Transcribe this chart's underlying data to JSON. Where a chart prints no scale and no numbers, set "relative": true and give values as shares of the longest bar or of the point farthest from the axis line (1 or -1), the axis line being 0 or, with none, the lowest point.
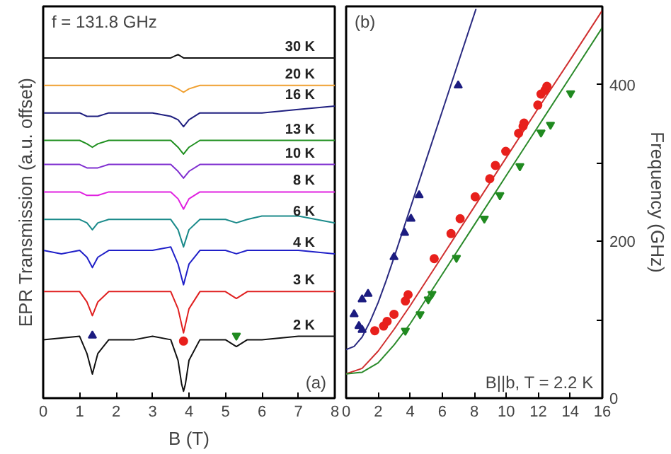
{
  "chart_data": [
    {
      "type": "line",
      "relative": true,
      "xlabel": "B (T)",
      "ylabel": "EPR Transmission (a.u. offset)",
      "xlim": [
        0,
        8
      ],
      "xticks": [
        0,
        1,
        2,
        3,
        4,
        5,
        6,
        7,
        8
      ],
      "tick_labels": "x",
      "grid": false,
      "annotations": [
        "f = 131.8 GHz",
        "(a)"
      ],
      "x": [
        0,
        0.5,
        1,
        1.2,
        1.35,
        1.5,
        1.8,
        2.5,
        3,
        3.5,
        3.7,
        3.85,
        4,
        4.3,
        5,
        5.3,
        5.6,
        6,
        7,
        8
      ],
      "series": [
        {
          "name": "2 K",
          "color": "#111111",
          "x": [
            0,
            0.5,
            1,
            1.2,
            1.35,
            1.5,
            1.8,
            2.5,
            3,
            3.5,
            3.7,
            3.8,
            3.85,
            3.9,
            4,
            4.3,
            5,
            5.3,
            5.6,
            6,
            7,
            8
          ],
          "values": [
            0.17,
            0.175,
            0.18,
            0.13,
            0.07,
            0.13,
            0.17,
            0.17,
            0.18,
            0.17,
            0.11,
            0.04,
            0.02,
            0.04,
            0.11,
            0.17,
            0.17,
            0.15,
            0.17,
            0.17,
            0.18,
            0.18
          ]
        },
        {
          "name": "3 K",
          "color": "#e02020",
          "values": [
            0.31,
            0.31,
            0.31,
            0.28,
            0.24,
            0.28,
            0.31,
            0.31,
            0.31,
            0.31,
            0.26,
            0.19,
            0.26,
            0.31,
            0.31,
            0.29,
            0.31,
            0.31,
            0.31,
            0.31
          ]
        },
        {
          "name": "4 K",
          "color": "#2020c8",
          "values": [
            0.43,
            0.42,
            0.43,
            0.41,
            0.38,
            0.41,
            0.43,
            0.43,
            0.43,
            0.44,
            0.39,
            0.33,
            0.39,
            0.43,
            0.43,
            0.42,
            0.43,
            0.43,
            0.43,
            0.42
          ]
        },
        {
          "name": "6 K",
          "color": "#1a8a8a",
          "values": [
            0.52,
            0.52,
            0.52,
            0.51,
            0.49,
            0.51,
            0.52,
            0.52,
            0.52,
            0.52,
            0.49,
            0.44,
            0.49,
            0.52,
            0.52,
            0.51,
            0.52,
            0.53,
            0.53,
            0.51
          ]
        },
        {
          "name": "8 K",
          "color": "#e020e0",
          "values": [
            0.6,
            0.6,
            0.6,
            0.59,
            0.59,
            0.59,
            0.6,
            0.6,
            0.6,
            0.6,
            0.58,
            0.55,
            0.58,
            0.6,
            0.6,
            0.6,
            0.6,
            0.6,
            0.6,
            0.6
          ]
        },
        {
          "name": "10 K",
          "color": "#8030d0",
          "values": [
            0.68,
            0.68,
            0.68,
            0.67,
            0.67,
            0.67,
            0.68,
            0.68,
            0.68,
            0.68,
            0.66,
            0.64,
            0.66,
            0.68,
            0.68,
            0.68,
            0.68,
            0.68,
            0.68,
            0.68
          ]
        },
        {
          "name": "13 K",
          "color": "#209020",
          "values": [
            0.75,
            0.75,
            0.75,
            0.74,
            0.73,
            0.74,
            0.75,
            0.75,
            0.75,
            0.75,
            0.73,
            0.71,
            0.73,
            0.75,
            0.75,
            0.75,
            0.75,
            0.75,
            0.75,
            0.75
          ]
        },
        {
          "name": "16 K",
          "color": "#202080",
          "values": [
            0.83,
            0.83,
            0.83,
            0.82,
            0.82,
            0.82,
            0.83,
            0.83,
            0.83,
            0.82,
            0.81,
            0.79,
            0.81,
            0.83,
            0.83,
            0.83,
            0.83,
            0.83,
            0.84,
            0.85
          ]
        },
        {
          "name": "20 K",
          "color": "#f0a030",
          "values": [
            0.91,
            0.91,
            0.91,
            0.91,
            0.91,
            0.91,
            0.91,
            0.91,
            0.91,
            0.91,
            0.9,
            0.89,
            0.9,
            0.91,
            0.91,
            0.91,
            0.91,
            0.91,
            0.91,
            0.91
          ]
        },
        {
          "name": "30 K",
          "color": "#111111",
          "values": [
            0.99,
            0.99,
            0.99,
            0.99,
            0.99,
            0.99,
            0.99,
            0.99,
            0.99,
            0.99,
            1.0,
            0.99,
            0.99,
            0.99,
            0.99,
            0.99,
            0.99,
            0.99,
            0.99,
            0.99
          ]
        },
        {
          "type": "scatter",
          "marker": "triangle",
          "color": "#1c1c80",
          "x": [
            1.35
          ],
          "values": [
            0.182
          ]
        },
        {
          "type": "scatter",
          "marker": "circle",
          "color": "#e8201c",
          "x": [
            3.85
          ],
          "values": [
            0.166
          ]
        },
        {
          "type": "scatter",
          "marker": "triangle_down",
          "color": "#208a20",
          "x": [
            5.3
          ],
          "values": [
            0.182
          ]
        }
      ]
    },
    {
      "type": "scatter",
      "ylabel": "Frequency (GHz)",
      "xlim": [
        0,
        16
      ],
      "xticks": [
        0,
        2,
        4,
        6,
        8,
        10,
        12,
        14,
        16
      ],
      "ylim": [
        0,
        500
      ],
      "yticks": [
        0,
        {
          "value": 100,
          "label": null
        },
        200,
        {
          "value": 300,
          "label": null
        },
        400
      ],
      "grid": false,
      "annotations": [
        "(b)",
        "B||b, T = 2.2 K"
      ],
      "series": [
        {
          "type": "line",
          "color": "#2a2a80",
          "x": [
            0,
            0.5,
            1,
            1.5,
            2,
            2.5,
            3,
            4,
            5,
            6,
            7,
            8.1
          ],
          "values": [
            62,
            66,
            78,
            98,
            122,
            150,
            180,
            242,
            304,
            366,
            428,
            496
          ]
        },
        {
          "type": "line",
          "color": "#d03030",
          "x": [
            0,
            1,
            2,
            3,
            4,
            6,
            8,
            10,
            12,
            14,
            16
          ],
          "values": [
            31,
            38,
            60,
            88,
            118,
            181,
            244,
            307,
            370,
            432,
            495
          ]
        },
        {
          "type": "line",
          "color": "#2a8a2a",
          "x": [
            0,
            1,
            2,
            3,
            4,
            6,
            8,
            10,
            12,
            14,
            16
          ],
          "values": [
            31,
            33,
            45,
            68,
            95,
            158,
            221,
            284,
            347,
            410,
            473
          ]
        },
        {
          "marker": "triangle",
          "color": "#1c1c80",
          "x": [
            0.5,
            0.8,
            1.0,
            1.0,
            1.37,
            2.99,
            3.65,
            4.05,
            4.56,
            7.0
          ],
          "values": [
            107,
            92,
            87,
            126,
            133,
            180,
            211,
            229,
            259,
            399
          ]
        },
        {
          "marker": "circle",
          "color": "#e8201c",
          "x": [
            1.79,
            2.34,
            2.56,
            2.99,
            3.7,
            3.87,
            5.5,
            6.55,
            7.12,
            8.06,
            8.97,
            9.32,
            9.97,
            10.77,
            11.05,
            11.11,
            11.97,
            12.17,
            12.42,
            12.54
          ],
          "values": [
            86,
            92,
            98,
            107,
            124,
            132,
            178,
            210,
            229,
            257,
            280,
            297,
            315,
            338,
            347,
            351,
            374,
            388,
            393,
            398
          ]
        },
        {
          "marker": "triangle_down",
          "color": "#208a20",
          "x": [
            3.7,
            4.62,
            5.13,
            5.36,
            6.89,
            8.63,
            9.6,
            10.85,
            12.17,
            12.76,
            14.02
          ],
          "values": [
            86,
            107,
            126,
            133,
            179,
            229,
            259,
            296,
            339,
            349,
            389
          ]
        }
      ]
    }
  ]
}
